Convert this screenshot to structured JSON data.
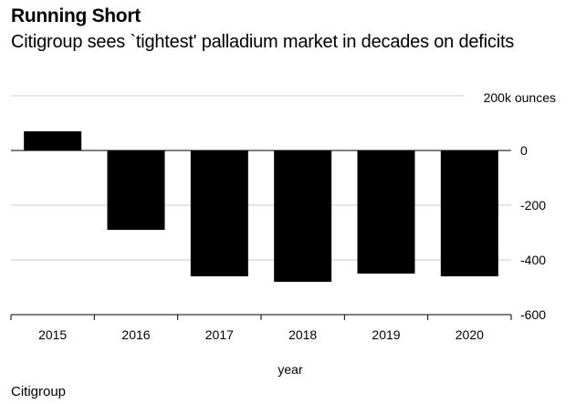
{
  "header": {
    "title": "Running Short",
    "subtitle": "Citigroup sees `tightest' palladium market in decades on deficits"
  },
  "footer": {
    "source": "Citigroup"
  },
  "chart_data": {
    "type": "bar",
    "title": "Running Short",
    "subtitle": "Citigroup sees `tightest' palladium market in decades on deficits",
    "categories": [
      "2015",
      "2016",
      "2017",
      "2018",
      "2019",
      "2020"
    ],
    "values": [
      70,
      -290,
      -460,
      -480,
      -450,
      -460
    ],
    "xlabel": "year",
    "ylabel": "",
    "unit_label": "200k ounces",
    "y_ticks": [
      0,
      -200,
      -400,
      -600
    ],
    "y_tick_labels": [
      "0",
      "-200",
      "-400",
      "-600"
    ],
    "ylim": [
      -600,
      200
    ],
    "grid": true,
    "bar_color": "#000000",
    "grid_color": "#cccccc",
    "source": "Citigroup"
  }
}
